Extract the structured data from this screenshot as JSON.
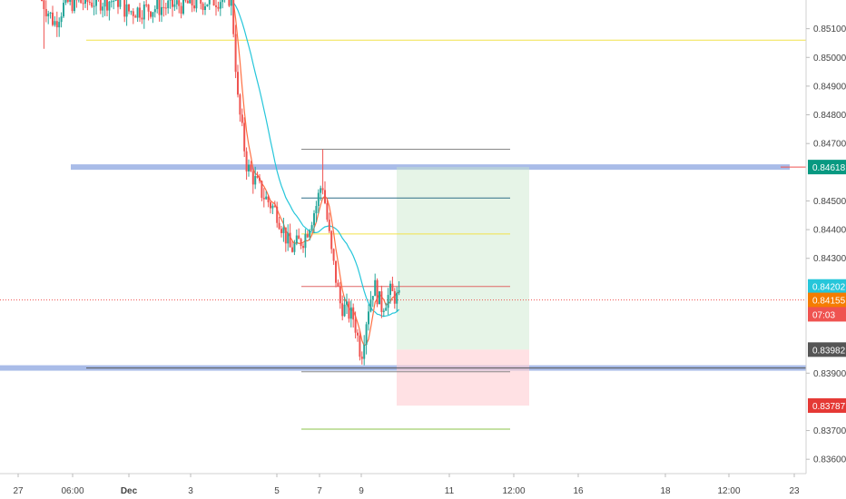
{
  "chart_data": {
    "type": "candlestick",
    "title": "",
    "xlabel": "",
    "ylabel": "",
    "grid": false,
    "ylim": [
      0.8355,
      0.852
    ],
    "x_tick_labels": [
      "27",
      "06:00",
      "Dec",
      "3",
      "5",
      "7",
      "9",
      "11",
      "12:00",
      "16",
      "18",
      "12:00",
      "23"
    ],
    "y_tick_labels": [
      0.851,
      0.85,
      0.849,
      0.848,
      0.847,
      0.845,
      0.844,
      0.843,
      0.839,
      0.837,
      0.836
    ],
    "price_badges": [
      {
        "label": "0.84618",
        "price": 0.84618,
        "color": "#089981"
      },
      {
        "label": "0.84202",
        "price": 0.84202,
        "color": "#26c6da"
      },
      {
        "label": "0.84155",
        "price": 0.84155,
        "color": "#f57c00"
      },
      {
        "label": "07:03",
        "price": 0.84105,
        "color": "#ef5350"
      },
      {
        "label": "0.83982",
        "price": 0.83982,
        "color": "#555555"
      },
      {
        "label": "0.83787",
        "price": 0.83787,
        "color": "#e53935"
      }
    ],
    "zones": [
      {
        "name": "resistance",
        "price": 0.84618,
        "color": "#6f8fd8"
      },
      {
        "name": "support",
        "price": 0.83918,
        "color": "#6f8fd8"
      }
    ],
    "horizontal_levels": [
      {
        "price": 0.8506,
        "color": "#f2e24a"
      },
      {
        "price": 0.8468,
        "color": "#888888"
      },
      {
        "price": 0.8451,
        "color": "#2e6f87"
      },
      {
        "price": 0.84385,
        "color": "#f2e24a"
      },
      {
        "price": 0.84202,
        "color": "#e06666"
      },
      {
        "price": 0.83918,
        "color": "#555555"
      },
      {
        "price": 0.83705,
        "color": "#8bc34a"
      }
    ],
    "position": {
      "type": "long",
      "entry": 0.83982,
      "target": 0.84618,
      "stop": 0.83787
    },
    "last_price": 0.84155,
    "current_price_line": 0.84155,
    "colors": {
      "up": "#26a69a",
      "down": "#ef5350",
      "ma_slow": "#26c6da",
      "ma_fast": "#ff7043"
    }
  }
}
